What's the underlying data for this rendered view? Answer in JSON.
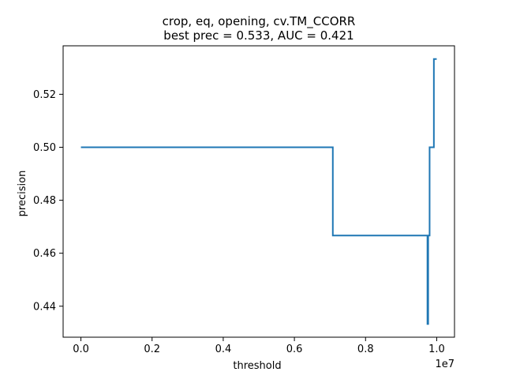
{
  "chart_data": {
    "type": "line",
    "title": [
      "crop, eq, opening, cv.TM_CCORR",
      "best prec = 0.533, AUC = 0.421"
    ],
    "xlabel": "threshold",
    "ylabel": "precision",
    "x_offset_text": "1e7",
    "x_unit_scale": 10000000,
    "xlim": [
      -500000,
      10500000
    ],
    "ylim": [
      0.4283,
      0.5383
    ],
    "grid": false,
    "x_ticks": [
      0.0,
      2000000,
      4000000,
      6000000,
      8000000,
      10000000
    ],
    "x_tick_labels": [
      "0.0",
      "0.2",
      "0.4",
      "0.6",
      "0.8",
      "1.0"
    ],
    "y_ticks": [
      0.44,
      0.46,
      0.48,
      0.5,
      0.52
    ],
    "y_tick_labels": [
      "0.44",
      "0.46",
      "0.48",
      "0.50",
      "0.52"
    ],
    "series": [
      {
        "color": "#1f77b4",
        "x": [
          0,
          7080000,
          7080000,
          9740000,
          9740000,
          9760000,
          9760000,
          9800000,
          9800000,
          9920000,
          9920000,
          10000000
        ],
        "y": [
          0.5,
          0.5,
          0.4667,
          0.4667,
          0.4333,
          0.4333,
          0.4667,
          0.4667,
          0.5,
          0.5,
          0.5333,
          0.5333
        ]
      }
    ]
  }
}
